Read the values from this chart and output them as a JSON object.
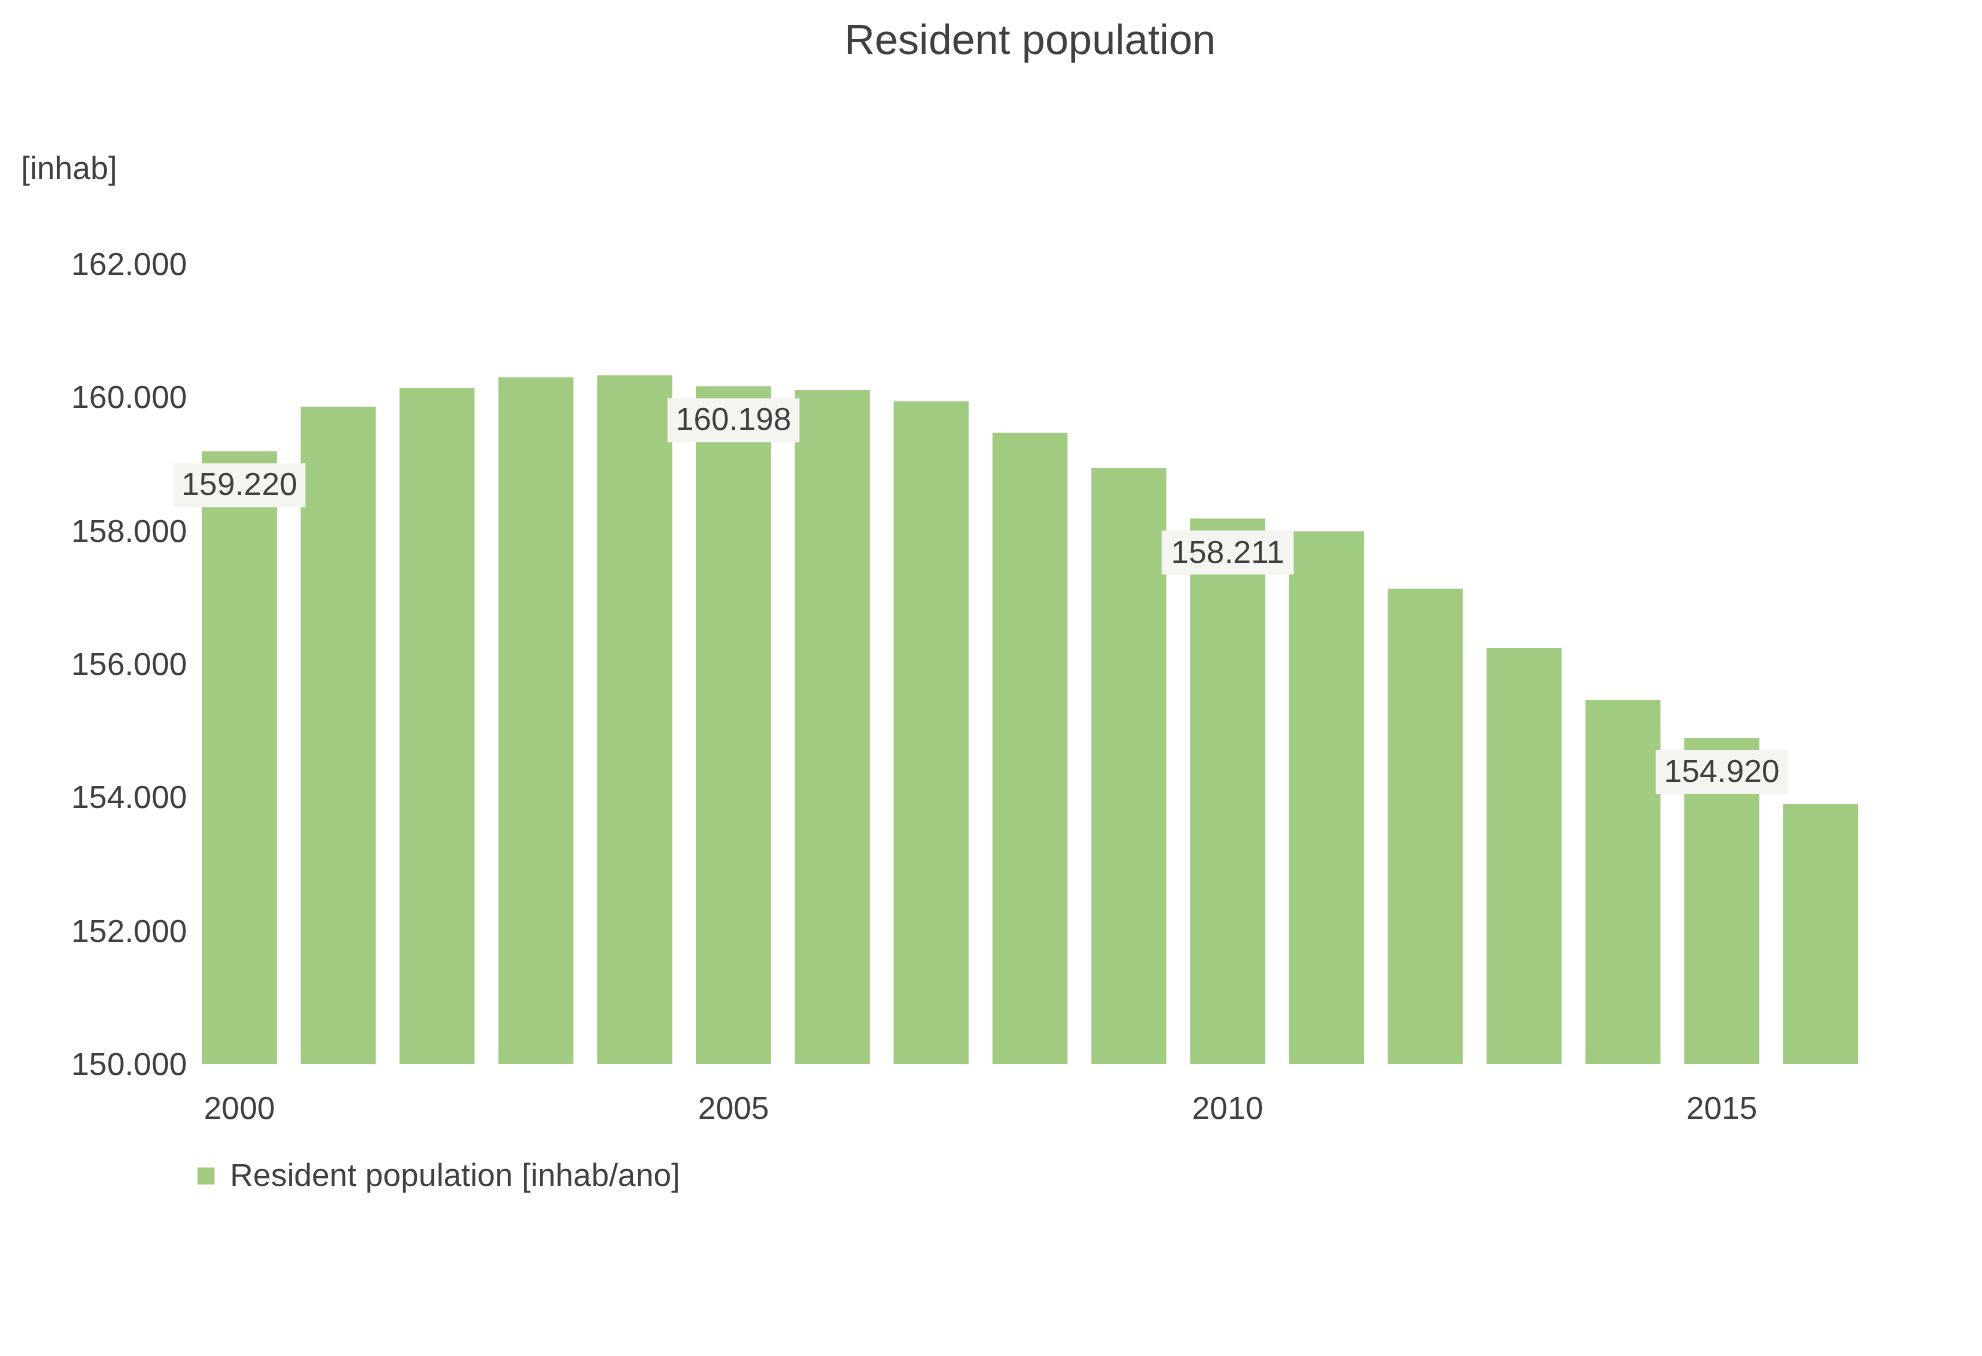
{
  "chart_data": {
    "type": "bar",
    "title": "Resident population",
    "ylabel": "[inhab]",
    "categories": [
      "2000",
      null,
      null,
      null,
      null,
      "2005",
      null,
      null,
      null,
      null,
      "2010",
      null,
      null,
      null,
      null,
      "2015",
      null
    ],
    "series": [
      {
        "name": "Resident population [inhab/ano]",
        "color": "#a1cb81",
        "values": [
          159220,
          159890,
          160170,
          160330,
          160360,
          160198,
          160140,
          159970,
          159500,
          158970,
          158211,
          158020,
          157160,
          156270,
          155490,
          154920,
          153930
        ],
        "value_labels": [
          "159.220",
          null,
          null,
          null,
          null,
          "160.198",
          null,
          null,
          null,
          null,
          "158.211",
          null,
          null,
          null,
          null,
          "154.920",
          null
        ]
      }
    ],
    "ylim": [
      150000,
      162000
    ],
    "yticks": [
      {
        "value": 150000,
        "label": "150.000"
      },
      {
        "value": 152000,
        "label": "152.000"
      },
      {
        "value": 154000,
        "label": "154.000"
      },
      {
        "value": 156000,
        "label": "156.000"
      },
      {
        "value": 158000,
        "label": "158.000"
      },
      {
        "value": 160000,
        "label": "160.000"
      },
      {
        "value": 162000,
        "label": "162.000"
      }
    ],
    "grid": false,
    "legend": "bottom"
  }
}
